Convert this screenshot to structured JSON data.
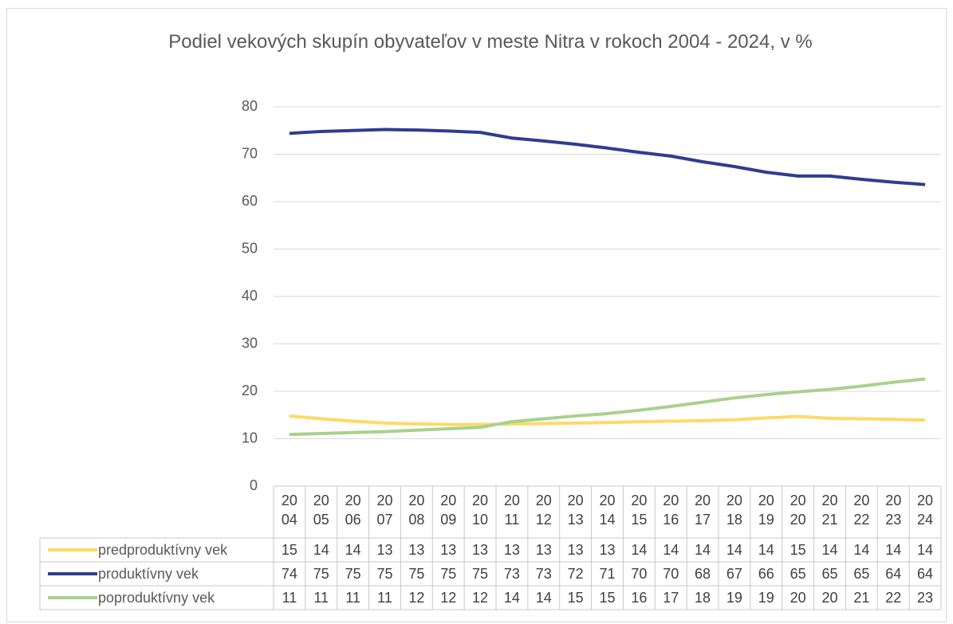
{
  "chart_data": {
    "type": "line",
    "title": "Podiel vekových skupín obyvateľov v meste Nitra v rokoch 2004 - 2024, v %",
    "categories": [
      "2004",
      "2005",
      "2006",
      "2007",
      "2008",
      "2009",
      "2010",
      "2011",
      "2012",
      "2013",
      "2014",
      "2015",
      "2016",
      "2017",
      "2018",
      "2019",
      "2020",
      "2021",
      "2022",
      "2023",
      "2024"
    ],
    "ylim": [
      0,
      80
    ],
    "yticks": [
      0,
      10,
      20,
      30,
      40,
      50,
      60,
      70,
      80
    ],
    "grid": true,
    "series": [
      {
        "name": "predproduktívny vek",
        "color": "#ffd966",
        "values": [
          14.8,
          14.2,
          13.7,
          13.3,
          13.1,
          13.0,
          13.0,
          13.1,
          13.2,
          13.3,
          13.4,
          13.6,
          13.7,
          13.8,
          14.0,
          14.4,
          14.7,
          14.3,
          14.2,
          14.1,
          13.9
        ],
        "value_labels": [
          "15",
          "14",
          "14",
          "13",
          "13",
          "13",
          "13",
          "13",
          "13",
          "13",
          "13",
          "14",
          "14",
          "14",
          "14",
          "14",
          "15",
          "14",
          "14",
          "14",
          "14"
        ]
      },
      {
        "name": "produktívny vek",
        "color": "#2f3d8f",
        "values": [
          74.4,
          74.8,
          75.0,
          75.2,
          75.1,
          74.9,
          74.6,
          73.4,
          72.8,
          72.1,
          71.3,
          70.4,
          69.6,
          68.4,
          67.4,
          66.2,
          65.4,
          65.4,
          64.7,
          64.1,
          63.6
        ],
        "value_labels": [
          "74",
          "75",
          "75",
          "75",
          "75",
          "75",
          "75",
          "73",
          "73",
          "72",
          "71",
          "70",
          "70",
          "68",
          "67",
          "66",
          "65",
          "65",
          "65",
          "64",
          "64"
        ]
      },
      {
        "name": "poproduktívny vek",
        "color": "#a9d18e",
        "values": [
          10.9,
          11.1,
          11.3,
          11.5,
          11.8,
          12.1,
          12.4,
          13.6,
          14.2,
          14.8,
          15.3,
          16.0,
          16.8,
          17.7,
          18.6,
          19.3,
          19.9,
          20.4,
          21.1,
          21.9,
          22.6
        ],
        "value_labels": [
          "11",
          "11",
          "11",
          "11",
          "12",
          "12",
          "12",
          "14",
          "14",
          "15",
          "15",
          "16",
          "17",
          "18",
          "19",
          "19",
          "20",
          "20",
          "21",
          "22",
          "23"
        ]
      }
    ]
  }
}
